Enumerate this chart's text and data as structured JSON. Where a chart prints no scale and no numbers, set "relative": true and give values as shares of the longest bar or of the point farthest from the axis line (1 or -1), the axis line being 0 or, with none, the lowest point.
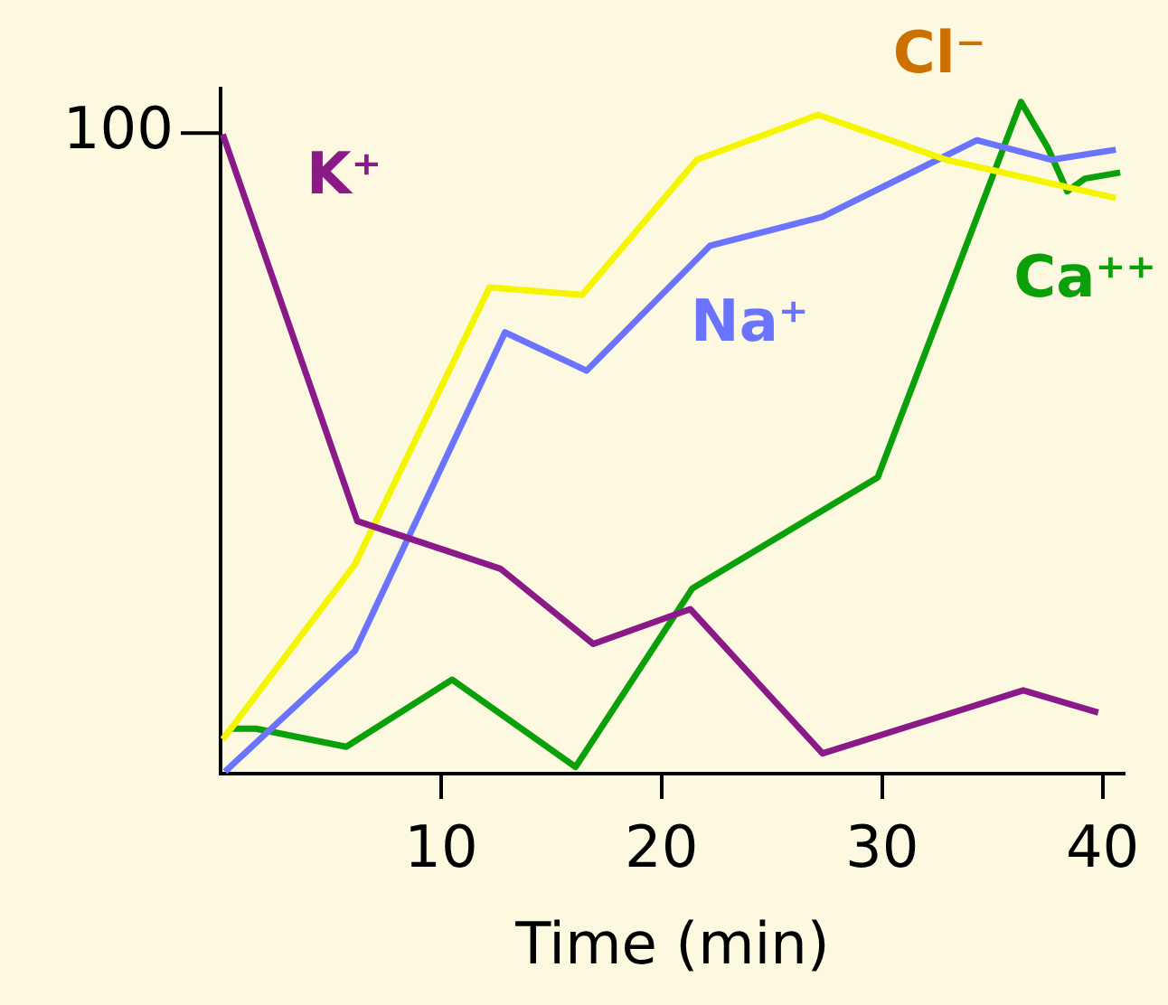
{
  "chart_data": {
    "type": "line",
    "relative": true,
    "xlabel": "Time (min)",
    "xlim": [
      0,
      41
    ],
    "xticks": [
      10,
      20,
      30,
      40
    ],
    "grid": false,
    "legend": false,
    "marker": "none",
    "annotations": [
      "100"
    ],
    "series": [
      {
        "name": "K⁺",
        "color": "#8b1a89",
        "x": [
          0.1,
          6.2,
          12.7,
          16.9,
          21.3,
          27.3,
          36.4,
          39.8
        ],
        "values": [
          0.952,
          0.376,
          0.305,
          0.193,
          0.245,
          0.03,
          0.124,
          0.091
        ]
      },
      {
        "name": "Cl⁻",
        "color": "#f5f500",
        "x": [
          0.1,
          6.1,
          12.2,
          16.4,
          21.6,
          27.1,
          32.9,
          40.6
        ],
        "values": [
          0.051,
          0.312,
          0.724,
          0.713,
          0.914,
          0.981,
          0.914,
          0.857
        ]
      },
      {
        "name": "Na⁺",
        "color": "#6b74ff",
        "x": [
          0.2,
          6.1,
          12.9,
          16.6,
          22.2,
          27.3,
          34.3,
          37.7,
          40.6
        ],
        "values": [
          0.003,
          0.183,
          0.657,
          0.6,
          0.786,
          0.829,
          0.943,
          0.914,
          0.929
        ]
      },
      {
        "name": "Ca⁺⁺",
        "color": "#0aa00a",
        "x": [
          0.4,
          1.6,
          5.7,
          10.5,
          16.1,
          21.4,
          29.8,
          36.3,
          37.5,
          38.4,
          39.2,
          40.8
        ],
        "values": [
          0.067,
          0.067,
          0.04,
          0.14,
          0.01,
          0.276,
          0.441,
          1,
          0.933,
          0.867,
          0.886,
          0.895
        ]
      }
    ]
  }
}
